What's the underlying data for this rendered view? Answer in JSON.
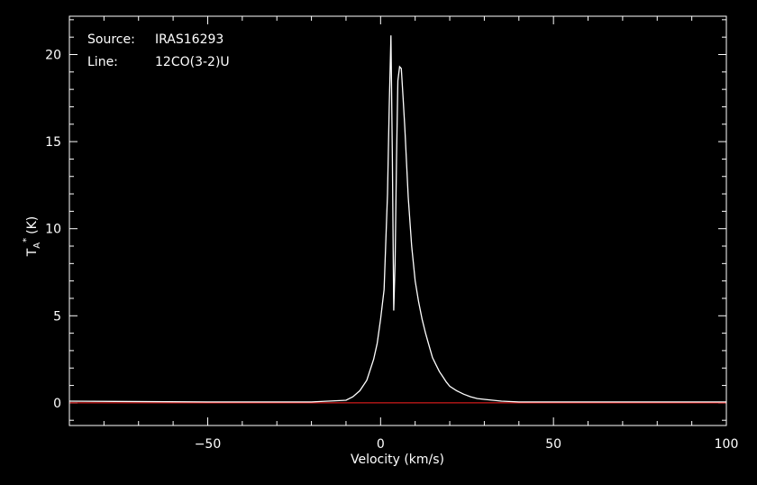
{
  "chart_data": {
    "type": "line",
    "info": {
      "source_label": "Source:",
      "source_value": "IRAS16293",
      "line_label": "Line:",
      "line_value": "12CO(3-2)U"
    },
    "xlabel": "Velocity (km/s)",
    "ylabel_main": "T",
    "ylabel_sub": "A",
    "ylabel_sup": "*",
    "ylabel_unit": "(K)",
    "xlim": [
      -90,
      100
    ],
    "ylim": [
      -1.3,
      22.2
    ],
    "x_ticks": [
      -50,
      0,
      50,
      100
    ],
    "x_tick_labels": [
      "−50",
      "0",
      "50",
      "100"
    ],
    "y_ticks": [
      0,
      5,
      10,
      15,
      20
    ],
    "y_tick_labels": [
      "0",
      "5",
      "10",
      "15",
      "20"
    ],
    "baseline": 0,
    "grid": false,
    "colors": {
      "spectrum": "#ffffff",
      "baseline": "#ff2020",
      "axes": "#ffffff",
      "background": "#000000"
    },
    "series": [
      {
        "x": [
          -90,
          -50,
          -20,
          -10,
          -8,
          -6,
          -4,
          -2,
          -1,
          0,
          1,
          2,
          2.5,
          3,
          3.4,
          3.8,
          4.2,
          4.6,
          5.0,
          5.5,
          6.0,
          6.5,
          7,
          8,
          9,
          10,
          11,
          12,
          13,
          14,
          15,
          16,
          17,
          18,
          19,
          20,
          22,
          24,
          26,
          28,
          30,
          35,
          40,
          60,
          100
        ],
        "y": [
          0.1,
          0.05,
          0.05,
          0.15,
          0.35,
          0.7,
          1.3,
          2.5,
          3.4,
          4.8,
          6.5,
          12,
          17,
          21.1,
          14,
          5.3,
          8,
          14,
          18.5,
          19.3,
          19.2,
          17.5,
          15.8,
          11.8,
          9.0,
          7.0,
          5.8,
          4.8,
          4.0,
          3.3,
          2.6,
          2.2,
          1.8,
          1.5,
          1.2,
          0.95,
          0.7,
          0.5,
          0.35,
          0.25,
          0.2,
          0.1,
          0.05,
          0.05,
          0.05
        ]
      }
    ]
  }
}
